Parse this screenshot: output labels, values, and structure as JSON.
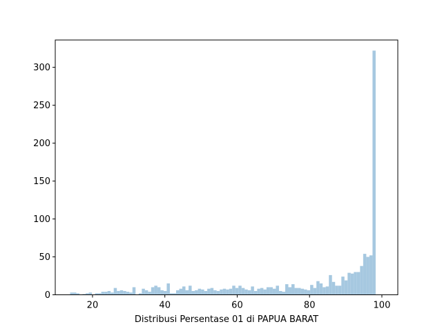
{
  "chart_data": {
    "type": "bar",
    "histogram": true,
    "title": "",
    "xlabel": "Distribusi Persentase 01 di PAPUA BARAT",
    "ylabel": "",
    "xlim": [
      9.7,
      104.4
    ],
    "ylim": [
      0,
      336
    ],
    "xticks": [
      20,
      40,
      60,
      80,
      100
    ],
    "yticks": [
      0,
      50,
      100,
      150,
      200,
      250,
      300
    ],
    "bar_color": "#a6c8e0",
    "grid": false,
    "bins": {
      "start": 13.8,
      "width": 0.862,
      "counts": [
        3,
        3,
        2,
        0,
        1,
        2,
        3,
        0,
        2,
        2,
        4,
        4,
        5,
        3,
        9,
        5,
        6,
        5,
        4,
        3,
        10,
        0,
        2,
        8,
        6,
        4,
        10,
        12,
        10,
        6,
        5,
        15,
        2,
        2,
        6,
        8,
        11,
        6,
        12,
        5,
        6,
        8,
        7,
        5,
        8,
        9,
        6,
        5,
        7,
        8,
        7,
        8,
        12,
        9,
        12,
        9,
        7,
        6,
        11,
        5,
        8,
        9,
        7,
        10,
        10,
        8,
        12,
        5,
        4,
        14,
        10,
        14,
        9,
        9,
        8,
        7,
        6,
        13,
        9,
        18,
        15,
        10,
        11,
        26,
        17,
        12,
        12,
        24,
        19,
        29,
        28,
        30,
        30,
        38,
        54,
        50,
        52,
        322
      ]
    }
  }
}
